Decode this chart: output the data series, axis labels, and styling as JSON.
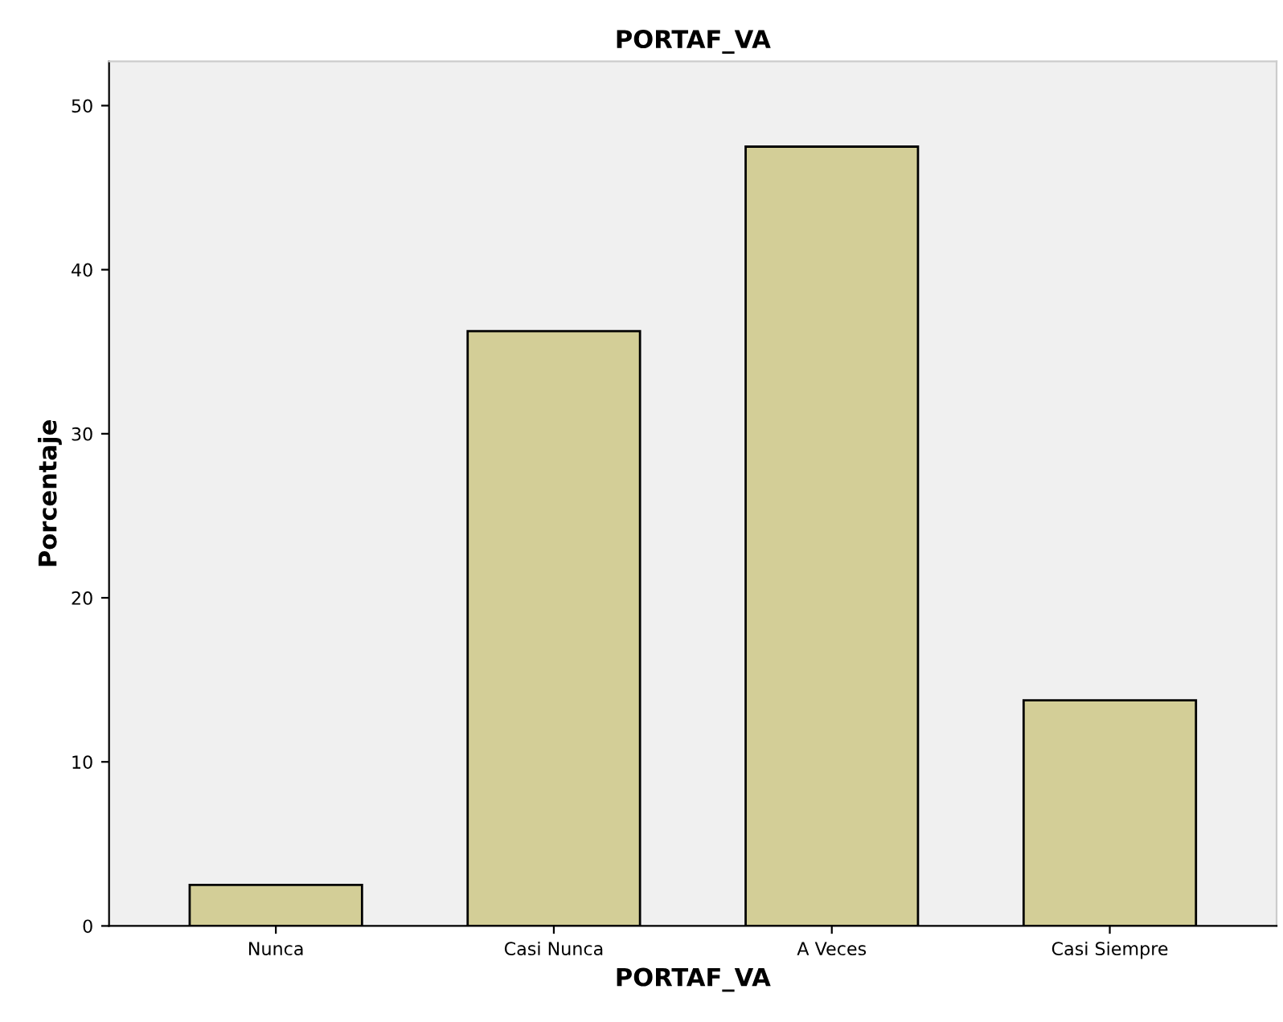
{
  "chart_data": {
    "type": "bar",
    "title": "PORTAF_VA",
    "xlabel": "PORTAF_VA",
    "ylabel": "Porcentaje",
    "categories": [
      "Nunca",
      "Casi Nunca",
      "A Veces",
      "Casi Siempre"
    ],
    "values": [
      2.5,
      36.25,
      47.5,
      13.75
    ],
    "color": "#d3ce97",
    "ylim": [
      0,
      52.7
    ],
    "yticks": [
      0,
      10,
      20,
      30,
      40,
      50
    ],
    "grid": false,
    "legend": false
  }
}
